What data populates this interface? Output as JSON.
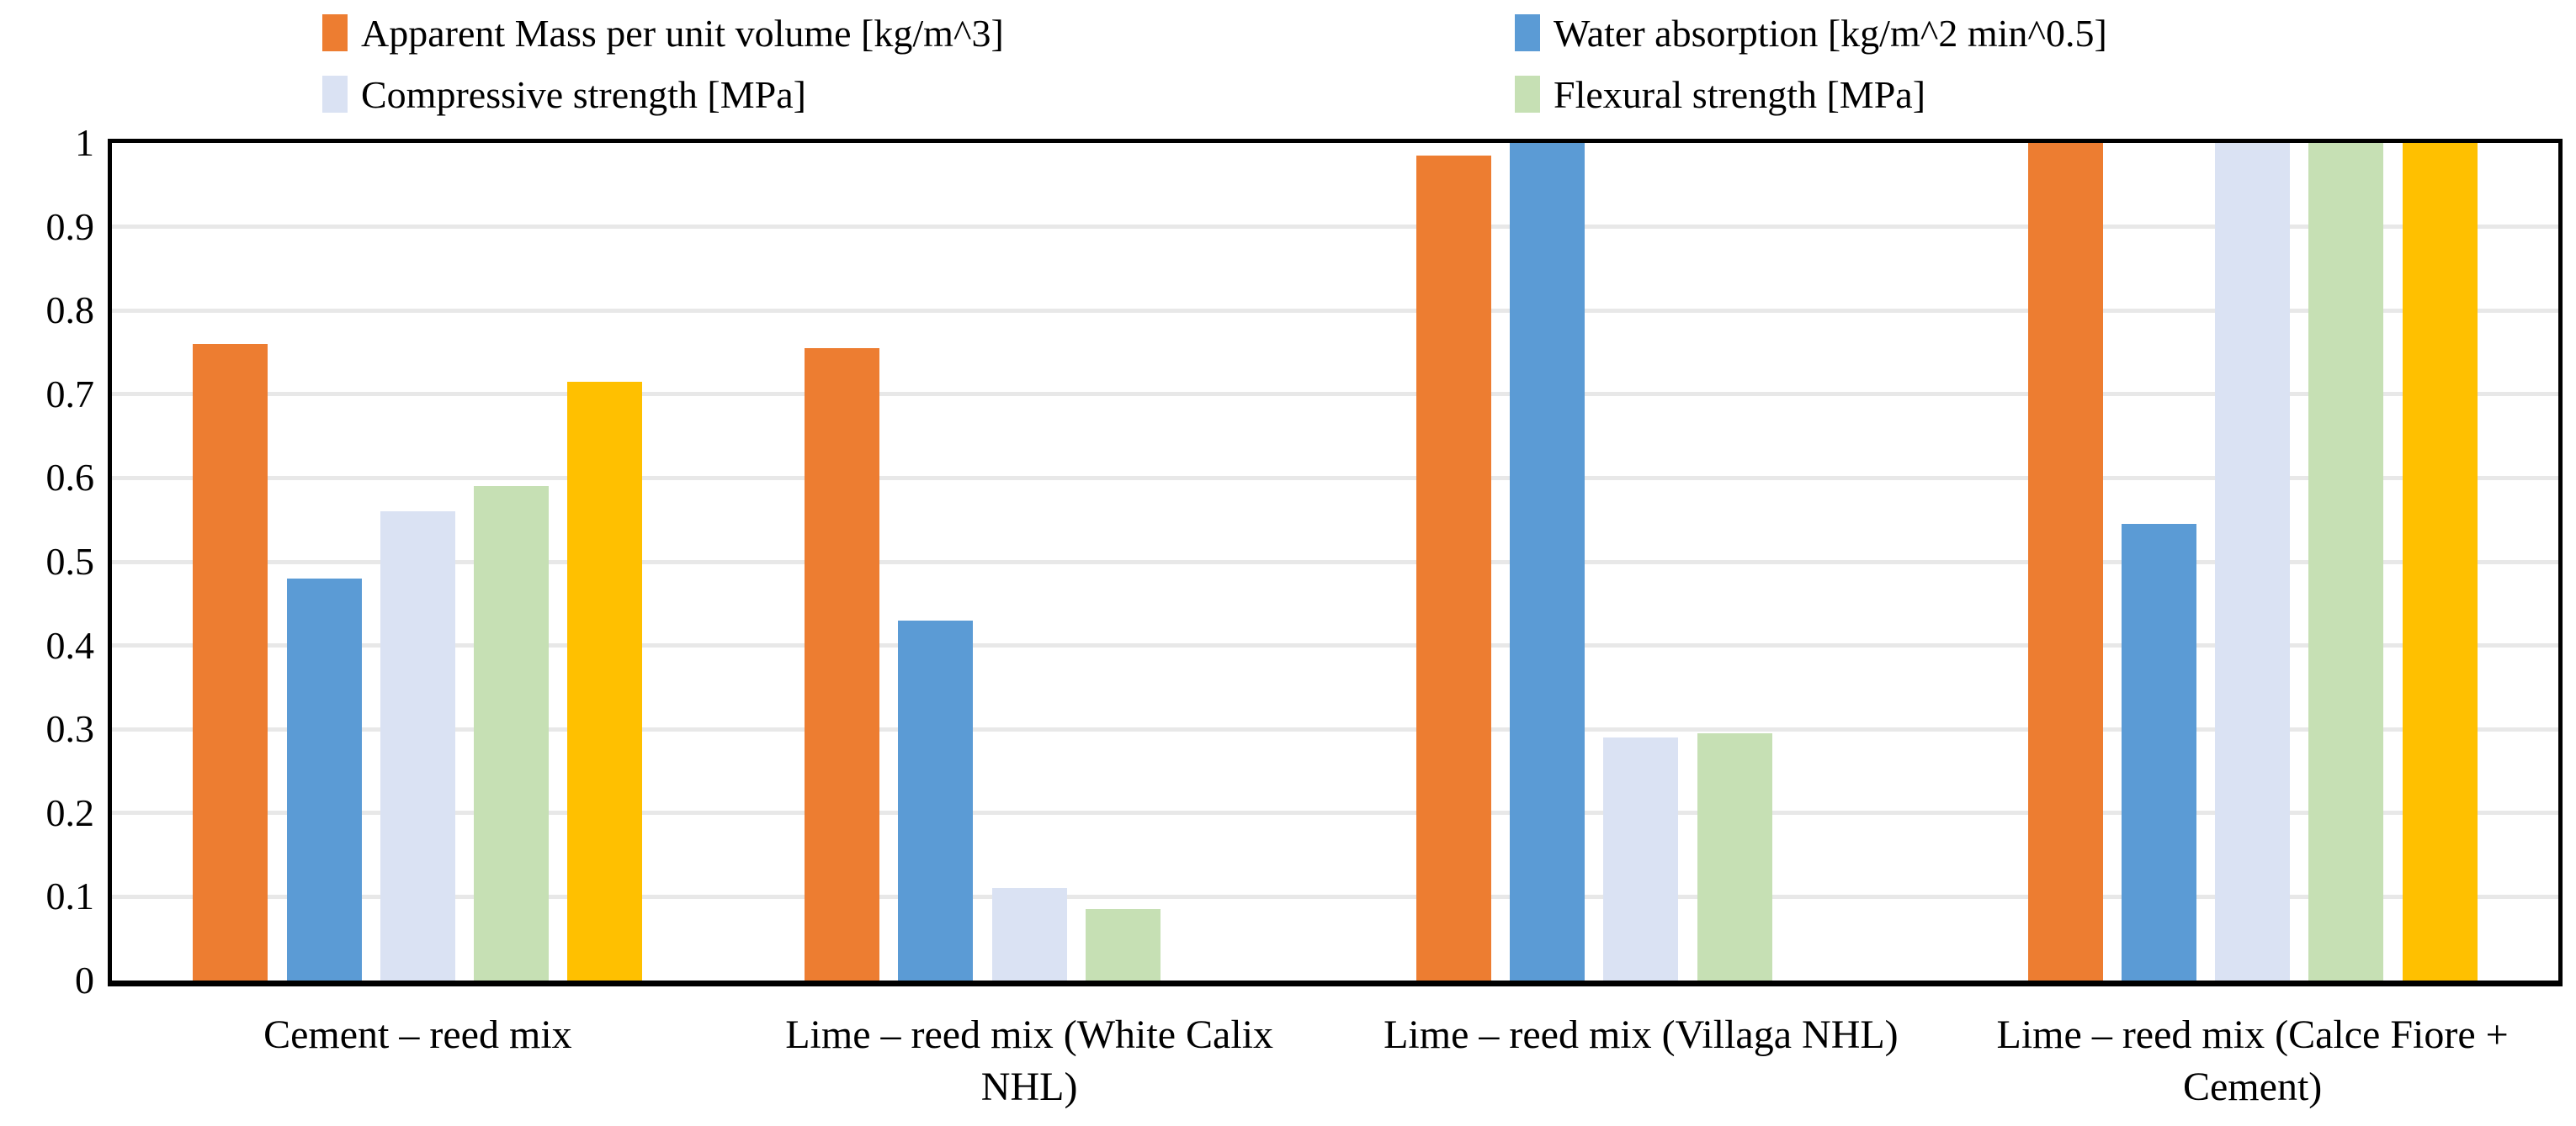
{
  "chart_data": {
    "type": "bar",
    "title": "",
    "xlabel": "",
    "ylabel": "",
    "ylim": [
      0,
      1
    ],
    "grid": "horizontal",
    "legend_position": "top-two-columns",
    "ytick_labels": [
      "0",
      "0.1",
      "0.2",
      "0.3",
      "0.4",
      "0.5",
      "0.6",
      "0.7",
      "0.8",
      "0.9",
      "1"
    ],
    "categories": [
      "Cement – reed mix",
      "Lime – reed mix (White Calix NHL)",
      "Lime – reed mix (Villaga NHL)",
      "Lime – reed mix (Calce Fiore + Cement)"
    ],
    "series": [
      {
        "name": "Apparent Mass per unit volume [kg/m^3]",
        "color": "#ED7D31",
        "in_legend": true,
        "values": [
          0.76,
          0.755,
          0.985,
          1.0
        ]
      },
      {
        "name": "Water absorption [kg/m^2 min^0.5]",
        "color": "#5B9BD5",
        "in_legend": true,
        "values": [
          0.48,
          0.43,
          1.0,
          0.545
        ]
      },
      {
        "name": "Compressive strength [MPa]",
        "color": "#DAE2F3",
        "in_legend": true,
        "values": [
          0.56,
          0.11,
          0.29,
          1.0
        ]
      },
      {
        "name": "Flexural strength [MPa]",
        "color": "#C6E0B4",
        "in_legend": true,
        "values": [
          0.59,
          0.085,
          0.295,
          1.0
        ]
      },
      {
        "name": "",
        "color": "#FFC000",
        "in_legend": false,
        "values": [
          0.715,
          null,
          null,
          1.0
        ]
      }
    ],
    "colors": {
      "axis": "#000000",
      "gridline": "#E8E8E8",
      "background": "#FFFFFF"
    }
  }
}
